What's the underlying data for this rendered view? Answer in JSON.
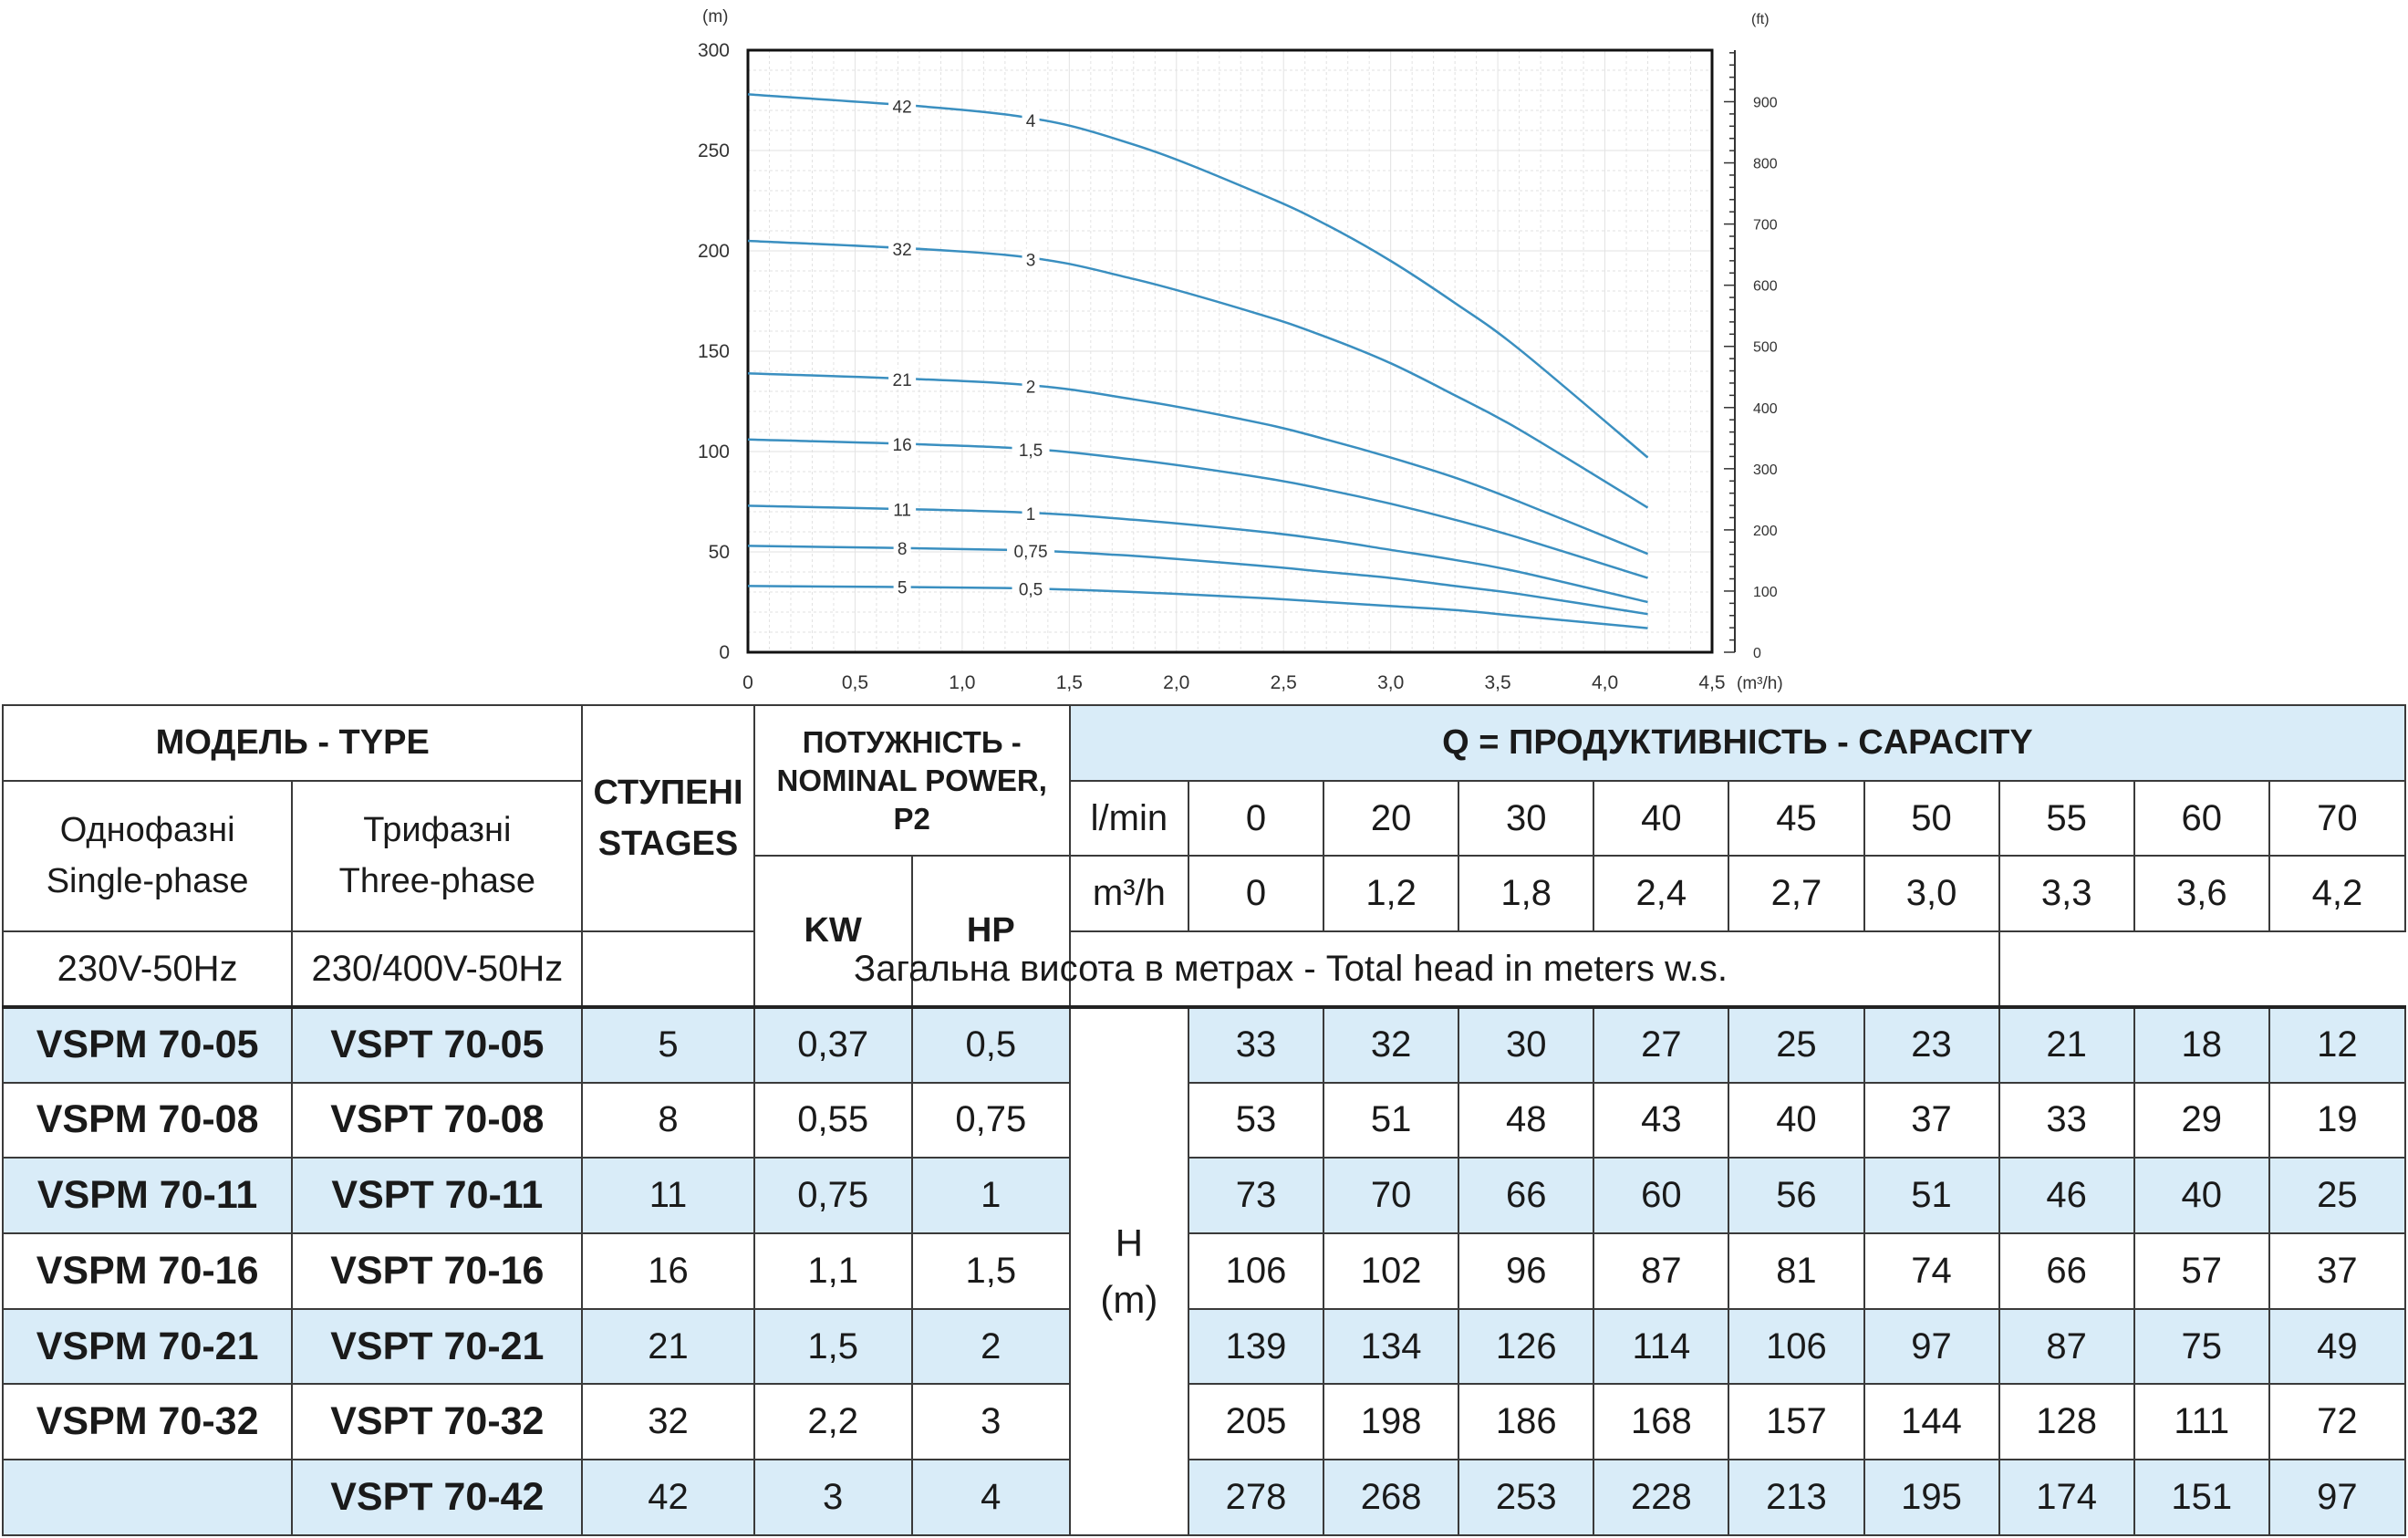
{
  "chart_data": {
    "type": "line",
    "x_unit": "(m³/h)",
    "y_unit_left": "(m)",
    "y_unit_right": "(ft)",
    "xlim": [
      0,
      4.5
    ],
    "ylim": [
      0,
      300
    ],
    "x_ticks": [
      "0",
      "0,5",
      "1,0",
      "1,5",
      "2,0",
      "2,5",
      "3,0",
      "3,5",
      "4,0",
      "4,5"
    ],
    "y_ticks": [
      "0",
      "50",
      "100",
      "150",
      "200",
      "250",
      "300"
    ],
    "ft_ticks": [
      "0",
      "100",
      "200",
      "300",
      "400",
      "500",
      "600",
      "700",
      "800",
      "900"
    ],
    "x": [
      0,
      1.2,
      1.8,
      2.4,
      2.7,
      3.0,
      3.3,
      3.6,
      4.2
    ],
    "grid": true,
    "series": [
      {
        "name": "5",
        "power": "0,5",
        "values": [
          33,
          32,
          30,
          27,
          25,
          23,
          21,
          18,
          12
        ]
      },
      {
        "name": "8",
        "power": "0,75",
        "values": [
          53,
          51,
          48,
          43,
          40,
          37,
          33,
          29,
          19
        ]
      },
      {
        "name": "11",
        "power": "1",
        "values": [
          73,
          70,
          66,
          60,
          56,
          51,
          46,
          40,
          25
        ]
      },
      {
        "name": "16",
        "power": "1,5",
        "values": [
          106,
          102,
          96,
          87,
          81,
          74,
          66,
          57,
          37
        ]
      },
      {
        "name": "21",
        "power": "2",
        "values": [
          139,
          134,
          126,
          114,
          106,
          97,
          87,
          75,
          49
        ]
      },
      {
        "name": "32",
        "power": "3",
        "values": [
          205,
          198,
          186,
          168,
          157,
          144,
          128,
          111,
          72
        ]
      },
      {
        "name": "42",
        "power": "4",
        "values": [
          278,
          268,
          253,
          228,
          213,
          195,
          174,
          151,
          97
        ]
      }
    ],
    "line_color": "#3a8fc0"
  },
  "table": {
    "model_header": "МОДЕЛЬ - TYPE",
    "single_phase": "Однофазні\nSingle-phase",
    "three_phase": "Трифазні\nThree-phase",
    "single_voltage": "230V-50Hz",
    "three_voltage": "230/400V-50Hz",
    "stages_header": "СТУПЕНІ\nSTAGES",
    "power_header": "ПОТУЖНІСТЬ -\nNOMINAL POWER,\nP2",
    "kw": "KW",
    "hp": "HP",
    "capacity_header": "Q = ПРОДУКТИВНІСТЬ - CAPACITY",
    "lmin_label": "l/min",
    "m3h_label": "m³/h",
    "lmin": [
      "0",
      "20",
      "30",
      "40",
      "45",
      "50",
      "55",
      "60",
      "70"
    ],
    "m3h": [
      "0",
      "1,2",
      "1,8",
      "2,4",
      "2,7",
      "3,0",
      "3,3",
      "3,6",
      "4,2"
    ],
    "total_head": "Загальна висота в метрах - Total head in meters w.s.",
    "h_label": "H\n(m)",
    "rows": [
      {
        "single": "VSPM 70-05",
        "three": "VSPT 70-05",
        "stages": "5",
        "kw": "0,37",
        "hp": "0,5",
        "heads": [
          "33",
          "32",
          "30",
          "27",
          "25",
          "23",
          "21",
          "18",
          "12"
        ]
      },
      {
        "single": "VSPM 70-08",
        "three": "VSPT 70-08",
        "stages": "8",
        "kw": "0,55",
        "hp": "0,75",
        "heads": [
          "53",
          "51",
          "48",
          "43",
          "40",
          "37",
          "33",
          "29",
          "19"
        ]
      },
      {
        "single": "VSPM 70-11",
        "three": "VSPT 70-11",
        "stages": "11",
        "kw": "0,75",
        "hp": "1",
        "heads": [
          "73",
          "70",
          "66",
          "60",
          "56",
          "51",
          "46",
          "40",
          "25"
        ]
      },
      {
        "single": "VSPM 70-16",
        "three": "VSPT 70-16",
        "stages": "16",
        "kw": "1,1",
        "hp": "1,5",
        "heads": [
          "106",
          "102",
          "96",
          "87",
          "81",
          "74",
          "66",
          "57",
          "37"
        ]
      },
      {
        "single": "VSPM 70-21",
        "three": "VSPT 70-21",
        "stages": "21",
        "kw": "1,5",
        "hp": "2",
        "heads": [
          "139",
          "134",
          "126",
          "114",
          "106",
          "97",
          "87",
          "75",
          "49"
        ]
      },
      {
        "single": "VSPM 70-32",
        "three": "VSPT 70-32",
        "stages": "32",
        "kw": "2,2",
        "hp": "3",
        "heads": [
          "205",
          "198",
          "186",
          "168",
          "157",
          "144",
          "128",
          "111",
          "72"
        ]
      },
      {
        "single": "",
        "three": "VSPT 70-42",
        "stages": "42",
        "kw": "3",
        "hp": "4",
        "heads": [
          "278",
          "268",
          "253",
          "228",
          "213",
          "195",
          "174",
          "151",
          "97"
        ]
      }
    ]
  }
}
